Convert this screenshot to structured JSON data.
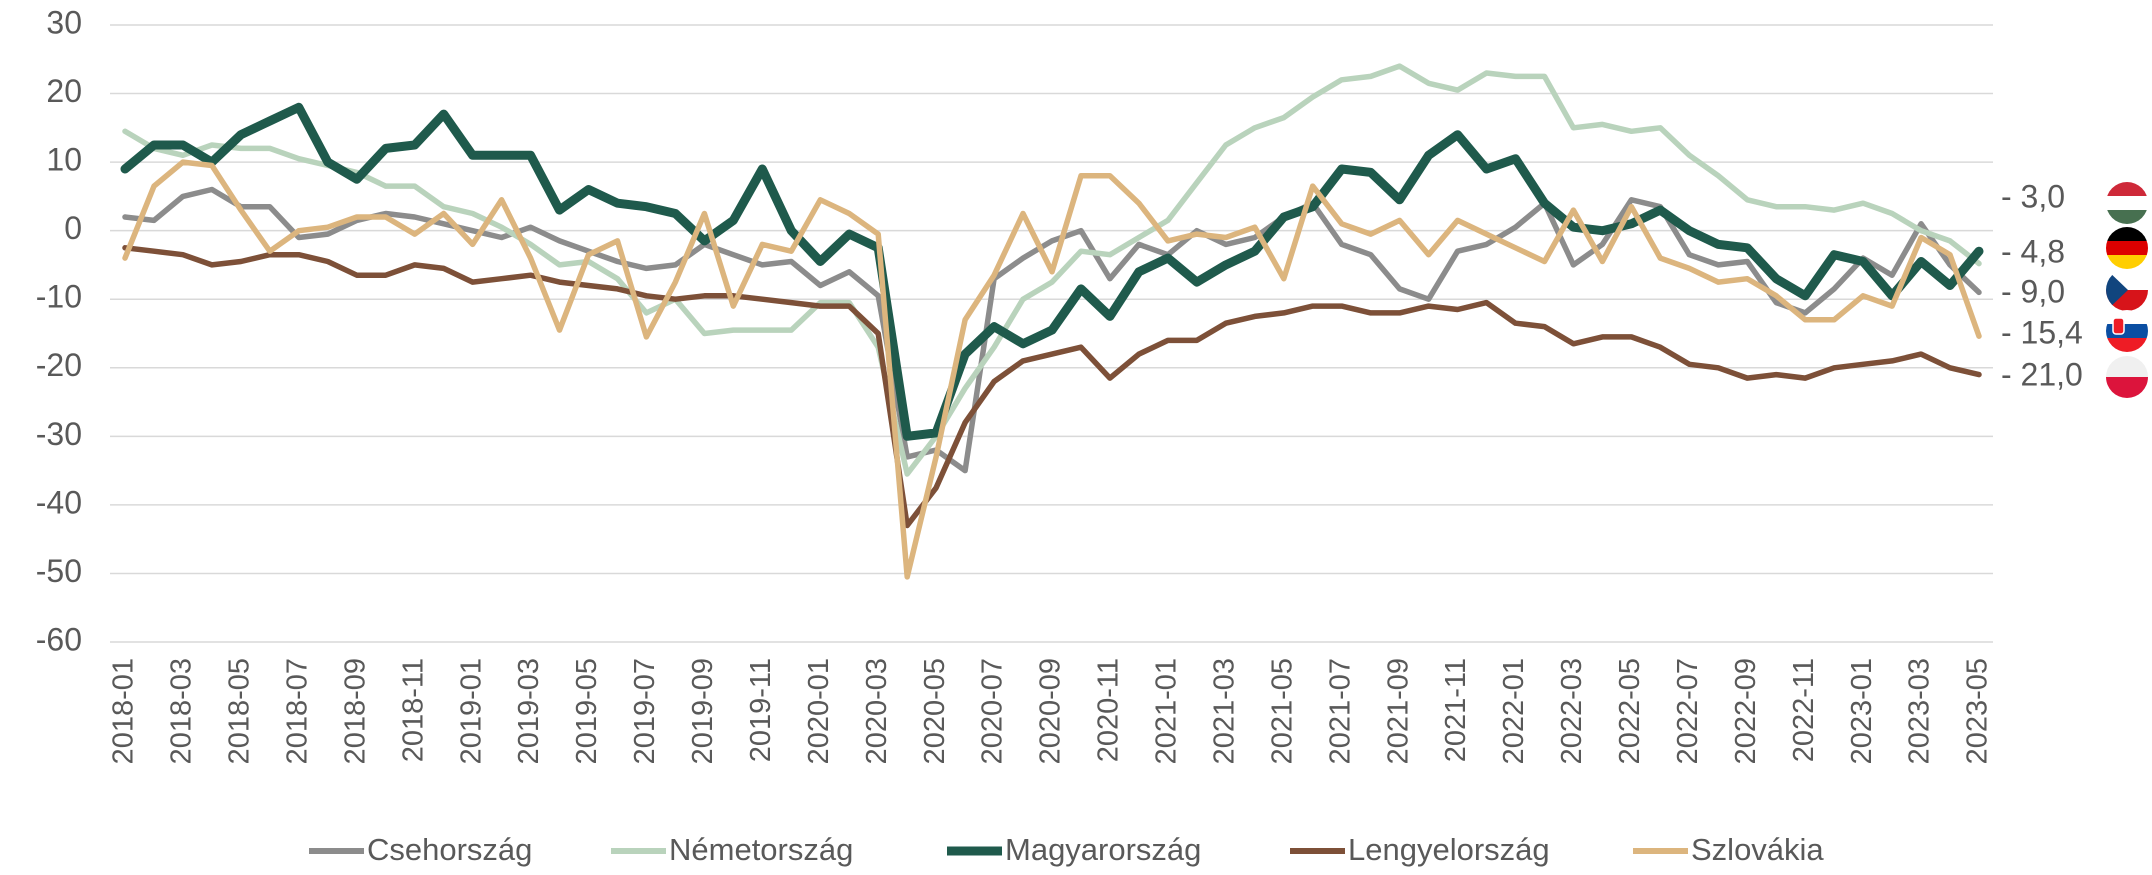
{
  "chart_data": {
    "type": "line",
    "categories": [
      "2018-01",
      null,
      "2018-03",
      null,
      "2018-05",
      null,
      "2018-07",
      null,
      "2018-09",
      null,
      "2018-11",
      null,
      "2019-01",
      null,
      "2019-03",
      null,
      "2019-05",
      null,
      "2019-07",
      null,
      "2019-09",
      null,
      "2019-11",
      null,
      "2020-01",
      null,
      "2020-03",
      null,
      "2020-05",
      null,
      "2020-07",
      null,
      "2020-09",
      null,
      "2020-11",
      null,
      "2021-01",
      null,
      "2021-03",
      null,
      "2021-05",
      null,
      "2021-07",
      null,
      "2021-09",
      null,
      "2021-11",
      null,
      "2022-01",
      null,
      "2022-03",
      null,
      "2022-05",
      null,
      "2022-07",
      null,
      "2022-09",
      null,
      "2022-11",
      null,
      "2023-01",
      null,
      "2023-03",
      null,
      "2023-05"
    ],
    "series": [
      {
        "name": "Csehország",
        "color": "#8c8c8c",
        "end_label": "- 9,0",
        "values": [
          2,
          1.5,
          5,
          6,
          3.5,
          3.5,
          -1,
          -0.5,
          1.5,
          2.5,
          2,
          1,
          0,
          -1,
          0.5,
          -1.5,
          -3,
          -4.5,
          -5.5,
          -5,
          -2,
          -3.5,
          -5,
          -4.5,
          -8,
          -6,
          -9.5,
          -33,
          -32,
          -35,
          -7,
          -4,
          -1.5,
          0,
          -7,
          -2,
          -3.5,
          0,
          -2,
          -1,
          2,
          4,
          -2,
          -3.5,
          -8.5,
          -10,
          -3,
          -2,
          0.5,
          4,
          -5,
          -2,
          4.5,
          3.5,
          -3.5,
          -5,
          -4.5,
          -10.5,
          -12,
          -8.5,
          -4,
          -6.5,
          1,
          -5,
          -9.0
        ]
      },
      {
        "name": "Németország",
        "color": "#b9d3bc",
        "end_label": "- 4,8",
        "values": [
          14.5,
          12,
          11,
          12.5,
          12,
          12,
          10.5,
          9.5,
          8.5,
          6.5,
          6.5,
          3.5,
          2.5,
          0.5,
          -2,
          -5,
          -4.5,
          -7,
          -12,
          -10,
          -15,
          -14.5,
          -14.5,
          -14.5,
          -10.5,
          -10.5,
          -17,
          -35.5,
          -30,
          -23,
          -17,
          -10,
          -7.5,
          -3,
          -3.5,
          -1,
          1.5,
          7,
          12.5,
          15,
          16.5,
          19.5,
          22,
          22.5,
          24,
          21.5,
          20.5,
          23,
          22.5,
          22.5,
          15,
          15.5,
          14.5,
          15,
          11,
          8,
          4.5,
          3.5,
          3.5,
          3,
          4,
          2.5,
          0,
          -1.5,
          -4.8
        ]
      },
      {
        "name": "Magyarország",
        "color": "#1f5a4c",
        "end_label": "- 3,0",
        "values": [
          9,
          12.5,
          12.5,
          10,
          14,
          16,
          18,
          10,
          7.5,
          12,
          12.5,
          17,
          11,
          11,
          11,
          3,
          6,
          4,
          3.5,
          2.5,
          -1.5,
          1.5,
          9,
          0,
          -4.5,
          -0.5,
          -2.5,
          -30,
          -29.5,
          -18,
          -14,
          -16.5,
          -14.5,
          -8.5,
          -12.5,
          -6,
          -4,
          -7.5,
          -5,
          -3,
          2,
          3.5,
          9,
          8.5,
          4.5,
          11,
          14,
          9,
          10.5,
          4,
          0.5,
          0,
          1,
          3,
          0,
          -2,
          -2.5,
          -7,
          -9.5,
          -3.5,
          -4.5,
          -9.5,
          -4.5,
          -8,
          -3.0
        ]
      },
      {
        "name": "Lengyelország",
        "color": "#7d5038",
        "end_label": "- 21,0",
        "values": [
          -2.5,
          -3,
          -3.5,
          -5,
          -4.5,
          -3.5,
          -3.5,
          -4.5,
          -6.5,
          -6.5,
          -5,
          -5.5,
          -7.5,
          -7,
          -6.5,
          -7.5,
          -8,
          -8.5,
          -9.5,
          -10,
          -9.5,
          -9.5,
          -10,
          -10.5,
          -11,
          -11,
          -15,
          -43,
          -37.5,
          -28,
          -22,
          -19,
          -18,
          -17,
          -21.5,
          -18,
          -16,
          -16,
          -13.5,
          -12.5,
          -12,
          -11,
          -11,
          -12,
          -12,
          -11,
          -11.5,
          -10.5,
          -13.5,
          -14,
          -16.5,
          -15.5,
          -15.5,
          -17,
          -19.5,
          -20,
          -21.5,
          -21,
          -21.5,
          -20,
          -19.5,
          -19,
          -18,
          -20,
          -21.0
        ]
      },
      {
        "name": "Szlovákia",
        "color": "#dcb57e",
        "end_label": "- 15,4",
        "values": [
          -4,
          6.5,
          10,
          9.5,
          3,
          -3,
          0,
          0.5,
          2,
          2,
          -0.5,
          2.5,
          -2,
          4.5,
          -4,
          -14.5,
          -3.5,
          -1.5,
          -15.5,
          -7.5,
          2.5,
          -11,
          -2,
          -3,
          4.5,
          2.5,
          -0.5,
          -50.5,
          -33,
          -13,
          -6.5,
          2.5,
          -6,
          8,
          8,
          4,
          -1.5,
          -0.5,
          -1,
          0.5,
          -7,
          6.5,
          1,
          -0.5,
          1.5,
          -3.5,
          1.5,
          -0.5,
          -2.5,
          -4.5,
          3,
          -4.5,
          3.5,
          -4,
          -5.5,
          -7.5,
          -7,
          -9.5,
          -13,
          -13,
          -9.5,
          -11,
          -1,
          -3.5,
          -15.4
        ]
      }
    ],
    "ylim": [
      -60,
      30
    ],
    "yticks": [
      30,
      20,
      10,
      0,
      -10,
      -20,
      -30,
      -40,
      -50,
      -60
    ],
    "grid": true
  }
}
